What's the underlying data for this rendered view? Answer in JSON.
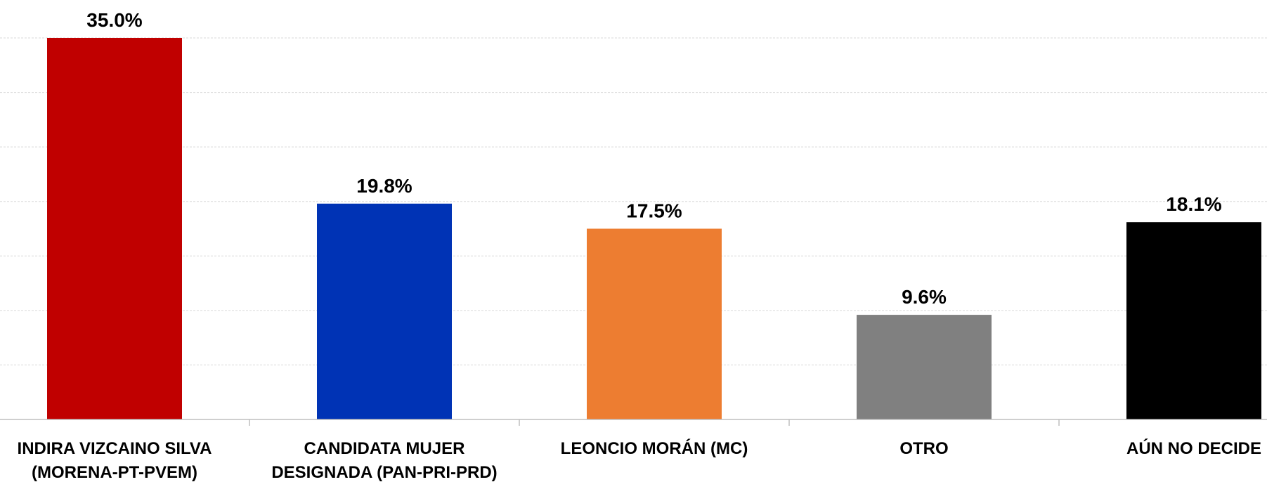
{
  "chart_data": {
    "type": "bar",
    "categories": [
      [
        "INDIRA VIZCAINO SILVA",
        "(MORENA-PT-PVEM)"
      ],
      [
        "CANDIDATA MUJER",
        "DESIGNADA (PAN-PRI-PRD)"
      ],
      [
        "LEONCIO MORÁN (MC)"
      ],
      [
        "OTRO"
      ],
      [
        "AÚN NO DECIDE"
      ]
    ],
    "values": [
      35.0,
      19.8,
      17.5,
      9.6,
      18.1
    ],
    "value_labels": [
      "35.0%",
      "19.8%",
      "17.5%",
      "9.6%",
      "18.1%"
    ],
    "colors": [
      "#c00000",
      "#0033b5",
      "#ed7d31",
      "#808080",
      "#000000"
    ],
    "ylim": [
      0,
      35
    ],
    "grid": true,
    "title": "",
    "xlabel": "",
    "ylabel": ""
  }
}
